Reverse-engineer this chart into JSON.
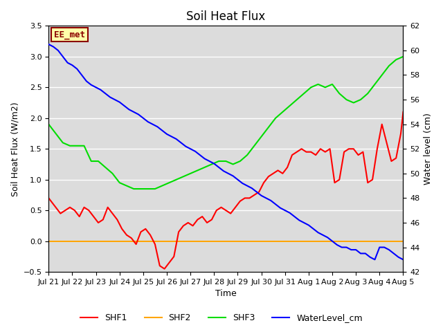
{
  "title": "Soil Heat Flux",
  "xlabel": "Time",
  "ylabel_left": "Soil Heat Flux (W/m2)",
  "ylabel_right": "Water level (cm)",
  "ylim_left": [
    -0.5,
    3.5
  ],
  "ylim_right": [
    42,
    62
  ],
  "xtick_labels": [
    "Jul 21",
    "Jul 22",
    "Jul 23",
    "Jul 24",
    "Jul 25",
    "Jul 26",
    "Jul 27",
    "Jul 28",
    "Jul 29",
    "Jul 30",
    "Jul 31",
    "Aug 1",
    "Aug 2",
    "Aug 3",
    "Aug 4",
    "Aug 5"
  ],
  "annotation_text": "EE_met",
  "annotation_color": "#8B0000",
  "annotation_bg": "#FFFFAA",
  "annotation_border": "#8B0000",
  "color_shf1": "#FF0000",
  "color_shf2": "#FFA500",
  "color_shf3": "#00DD00",
  "color_wl": "#0000FF",
  "bg_color": "#DCDCDC",
  "grid_color": "#FFFFFF",
  "title_fontsize": 12,
  "label_fontsize": 9,
  "tick_fontsize": 8,
  "legend_fontsize": 9,
  "shf1_x": [
    0,
    0.1,
    0.3,
    0.5,
    0.7,
    0.9,
    1.1,
    1.3,
    1.5,
    1.7,
    1.9,
    2.1,
    2.3,
    2.5,
    2.7,
    2.9,
    3.1,
    3.3,
    3.5,
    3.7,
    3.9,
    4.1,
    4.3,
    4.5,
    4.7,
    4.9,
    5.1,
    5.3,
    5.5,
    5.7,
    5.9,
    6.1,
    6.3,
    6.5,
    6.7,
    6.9,
    7.1,
    7.3,
    7.5,
    7.7,
    7.9,
    8.1,
    8.3,
    8.5,
    8.7,
    8.9,
    9.1,
    9.3,
    9.5,
    9.7,
    9.9,
    10.1,
    10.3,
    10.5,
    10.7,
    10.9,
    11.1,
    11.3,
    11.5,
    11.7,
    11.9,
    12.1,
    12.3,
    12.5,
    12.7,
    12.9,
    13.1,
    13.3,
    13.5,
    13.7,
    13.9,
    14.1,
    14.3,
    14.5,
    14.7,
    14.9,
    15.0
  ],
  "shf1_y": [
    0.7,
    0.65,
    0.55,
    0.45,
    0.5,
    0.55,
    0.5,
    0.4,
    0.55,
    0.5,
    0.4,
    0.3,
    0.35,
    0.55,
    0.45,
    0.35,
    0.2,
    0.1,
    0.05,
    -0.05,
    0.15,
    0.2,
    0.1,
    -0.05,
    -0.4,
    -0.45,
    -0.35,
    -0.25,
    0.15,
    0.25,
    0.3,
    0.25,
    0.35,
    0.4,
    0.3,
    0.35,
    0.5,
    0.55,
    0.5,
    0.45,
    0.55,
    0.65,
    0.7,
    0.7,
    0.75,
    0.8,
    0.95,
    1.05,
    1.1,
    1.15,
    1.1,
    1.2,
    1.4,
    1.45,
    1.5,
    1.45,
    1.45,
    1.4,
    1.5,
    1.45,
    1.5,
    0.95,
    1.0,
    1.45,
    1.5,
    1.5,
    1.4,
    1.45,
    0.95,
    1.0,
    1.5,
    1.9,
    1.6,
    1.3,
    1.35,
    1.75,
    2.1
  ],
  "shf3_x": [
    0,
    0.3,
    0.6,
    0.9,
    1.2,
    1.5,
    1.8,
    2.1,
    2.4,
    2.7,
    3.0,
    3.3,
    3.6,
    3.9,
    4.2,
    4.5,
    4.8,
    5.1,
    5.4,
    5.7,
    6.0,
    6.3,
    6.6,
    6.9,
    7.2,
    7.5,
    7.8,
    8.1,
    8.4,
    8.7,
    9.0,
    9.3,
    9.6,
    9.9,
    10.2,
    10.5,
    10.8,
    11.1,
    11.4,
    11.7,
    12.0,
    12.3,
    12.6,
    12.9,
    13.2,
    13.5,
    13.8,
    14.1,
    14.4,
    14.7,
    15.0
  ],
  "shf3_y": [
    1.9,
    1.75,
    1.6,
    1.55,
    1.55,
    1.55,
    1.3,
    1.3,
    1.2,
    1.1,
    0.95,
    0.9,
    0.85,
    0.85,
    0.85,
    0.85,
    0.9,
    0.95,
    1.0,
    1.05,
    1.1,
    1.15,
    1.2,
    1.25,
    1.3,
    1.3,
    1.25,
    1.3,
    1.4,
    1.55,
    1.7,
    1.85,
    2.0,
    2.1,
    2.2,
    2.3,
    2.4,
    2.5,
    2.55,
    2.5,
    2.55,
    2.4,
    2.3,
    2.25,
    2.3,
    2.4,
    2.55,
    2.7,
    2.85,
    2.95,
    3.0
  ],
  "wl_x": [
    0,
    0.2,
    0.4,
    0.6,
    0.8,
    1.0,
    1.2,
    1.4,
    1.6,
    1.8,
    2.0,
    2.2,
    2.4,
    2.6,
    2.8,
    3.0,
    3.2,
    3.4,
    3.6,
    3.8,
    4.0,
    4.2,
    4.4,
    4.6,
    4.8,
    5.0,
    5.2,
    5.4,
    5.6,
    5.8,
    6.0,
    6.2,
    6.4,
    6.6,
    6.8,
    7.0,
    7.2,
    7.4,
    7.6,
    7.8,
    8.0,
    8.2,
    8.4,
    8.6,
    8.8,
    9.0,
    9.2,
    9.4,
    9.6,
    9.8,
    10.0,
    10.2,
    10.4,
    10.6,
    10.8,
    11.0,
    11.2,
    11.4,
    11.6,
    11.8,
    12.0,
    12.2,
    12.4,
    12.6,
    12.8,
    13.0,
    13.2,
    13.4,
    13.6,
    13.8,
    14.0,
    14.2,
    14.4,
    14.6,
    14.8,
    15.0
  ],
  "wl_y": [
    60.5,
    60.3,
    60.0,
    59.5,
    59.0,
    58.8,
    58.5,
    58.0,
    57.5,
    57.2,
    57.0,
    56.8,
    56.5,
    56.2,
    56.0,
    55.8,
    55.5,
    55.2,
    55.0,
    54.8,
    54.5,
    54.2,
    54.0,
    53.8,
    53.5,
    53.2,
    53.0,
    52.8,
    52.5,
    52.2,
    52.0,
    51.8,
    51.5,
    51.2,
    51.0,
    50.8,
    50.5,
    50.2,
    50.0,
    49.8,
    49.5,
    49.2,
    49.0,
    48.8,
    48.5,
    48.2,
    48.0,
    47.8,
    47.5,
    47.2,
    47.0,
    46.8,
    46.5,
    46.2,
    46.0,
    45.8,
    45.5,
    45.2,
    45.0,
    44.8,
    44.5,
    44.2,
    44.0,
    44.0,
    43.8,
    43.8,
    43.5,
    43.5,
    43.2,
    43.0,
    44.0,
    44.0,
    43.8,
    43.5,
    43.2,
    43.0
  ]
}
